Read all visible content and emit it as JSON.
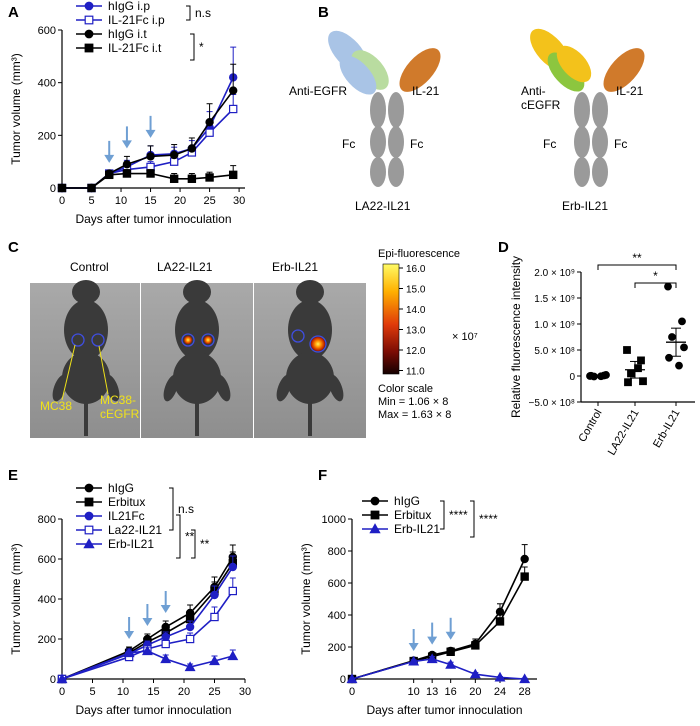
{
  "panels": {
    "A": "A",
    "B": "B",
    "C": "C",
    "D": "D",
    "E": "E",
    "F": "F"
  },
  "colors": {
    "blue": "#1f1fc4",
    "black": "#000000",
    "arrow": "#6f9fd3",
    "ab_grey": "#9a9a9a",
    "light_blue": "#a9c4e6",
    "light_green": "#b9dca0",
    "orange": "#d07a2b",
    "yellow": "#f3c21b",
    "green": "#8cc63f"
  },
  "diagram": {
    "left": {
      "anti": "Anti-EGFR",
      "il21": "IL-21",
      "fc_left": "Fc",
      "fc_right": "Fc",
      "name": "LA22-IL21"
    },
    "right": {
      "anti_1": "Anti-",
      "anti_2": "cEGFR",
      "il21": "IL-21",
      "fc_left": "Fc",
      "fc_right": "Fc",
      "name": "Erb-IL21"
    }
  },
  "imaging": {
    "cols": [
      "Control",
      "LA22-IL21",
      "Erb-IL21"
    ],
    "label_mc38": "MC38",
    "label_mc38c_1": "MC38-",
    "label_mc38c_2": "cEGFR",
    "scale_title": "Epi-fluorescence",
    "scale_ticks": [
      "16.0",
      "15.0",
      "14.0",
      "13.0",
      "12.0",
      "11.0"
    ],
    "scale_exp": "× 10⁷",
    "scale_caption": "Color scale",
    "scale_min": "Min = 1.06 × 8",
    "scale_max": "Max = 1.63 × 8"
  },
  "chart_data": [
    {
      "panel": "A",
      "type": "line",
      "xlabel": "Days after tumor innoculation",
      "ylabel": "Tumor volume (mm³)",
      "xlim": [
        0,
        31
      ],
      "ylim": [
        0,
        600
      ],
      "xticks": [
        0,
        5,
        10,
        15,
        20,
        25,
        30
      ],
      "yticks": [
        0,
        200,
        400,
        600
      ],
      "arrows": [
        8,
        11,
        15
      ],
      "x": [
        0,
        5,
        8,
        11,
        15,
        19,
        22,
        25,
        29
      ],
      "series": [
        {
          "name": "hIgG  i.p",
          "color": "#1f1fc4",
          "marker": "circle",
          "filled": true,
          "values": [
            0,
            0,
            55,
            80,
            125,
            130,
            150,
            230,
            420
          ],
          "err": [
            0,
            0,
            10,
            25,
            35,
            25,
            30,
            60,
            115
          ]
        },
        {
          "name": "IL-21Fc  i.p",
          "color": "#1f1fc4",
          "marker": "square",
          "filled": false,
          "values": [
            0,
            0,
            55,
            70,
            80,
            100,
            135,
            210,
            300
          ],
          "err": [
            0,
            0,
            10,
            15,
            20,
            20,
            25,
            40,
            55
          ]
        },
        {
          "name": "hIgG  i.t",
          "color": "#000000",
          "marker": "circle",
          "filled": true,
          "values": [
            0,
            0,
            55,
            90,
            120,
            125,
            150,
            250,
            370
          ],
          "err": [
            0,
            0,
            10,
            30,
            40,
            40,
            40,
            70,
            100
          ]
        },
        {
          "name": "IL-21Fc  i.t",
          "color": "#000000",
          "marker": "square",
          "filled": true,
          "values": [
            0,
            0,
            50,
            55,
            55,
            35,
            35,
            40,
            50
          ],
          "err": [
            0,
            0,
            10,
            15,
            15,
            20,
            20,
            20,
            35
          ]
        }
      ],
      "sig": [
        "n.s",
        "*"
      ]
    },
    {
      "panel": "D",
      "type": "scatter",
      "xlabel": "",
      "ylabel": "Relative fluorescence intensity",
      "ylim": [
        -500000000,
        2000000000
      ],
      "categories": [
        "Control",
        "LA22-IL21",
        "Erb-IL21"
      ],
      "ytick_labels": [
        "2.0 × 10⁹",
        "1.5 × 10⁹",
        "1.0 × 10⁹",
        "5.0 × 10⁸",
        "0",
        "−5.0 × 10⁸"
      ],
      "yticks": [
        2000000000,
        1500000000,
        1000000000,
        500000000,
        0,
        -500000000
      ],
      "groups": [
        {
          "marker": "circle",
          "points": [
            0,
            10000000,
            -10000000,
            20000000,
            5000000,
            -5000000
          ],
          "mean": 0,
          "err": 20000000
        },
        {
          "marker": "square",
          "points": [
            500000000,
            300000000,
            50000000,
            -100000000,
            -120000000,
            150000000
          ],
          "mean": 120000000,
          "err": 160000000
        },
        {
          "marker": "circle",
          "points": [
            1720000000,
            1050000000,
            750000000,
            550000000,
            350000000,
            200000000
          ],
          "mean": 650000000,
          "err": 270000000
        }
      ],
      "sig": [
        "**",
        "*"
      ]
    },
    {
      "panel": "E",
      "type": "line",
      "xlabel": "Days after tumor innoculation",
      "ylabel": "Tumor volume (mm³)",
      "xlim": [
        0,
        30
      ],
      "ylim": [
        0,
        800
      ],
      "xticks": [
        0,
        5,
        10,
        15,
        20,
        25,
        30
      ],
      "yticks": [
        0,
        200,
        400,
        600,
        800
      ],
      "arrows": [
        11,
        14,
        17
      ],
      "x": [
        0,
        11,
        14,
        17,
        21,
        25,
        28
      ],
      "series": [
        {
          "name": "hIgG",
          "color": "#000000",
          "marker": "circle",
          "filled": true,
          "values": [
            0,
            140,
            200,
            260,
            330,
            460,
            610
          ],
          "err": [
            0,
            20,
            25,
            30,
            40,
            50,
            60
          ]
        },
        {
          "name": "Erbitux",
          "color": "#000000",
          "marker": "square",
          "filled": true,
          "values": [
            0,
            130,
            185,
            230,
            300,
            440,
            580
          ],
          "err": [
            0,
            20,
            25,
            30,
            35,
            45,
            55
          ]
        },
        {
          "name": "IL21Fc",
          "color": "#1f1fc4",
          "marker": "circle",
          "filled": true,
          "values": [
            0,
            125,
            170,
            210,
            260,
            420,
            560
          ],
          "err": [
            0,
            15,
            20,
            25,
            30,
            45,
            55
          ]
        },
        {
          "name": "La22-IL21",
          "color": "#1f1fc4",
          "marker": "square",
          "filled": false,
          "values": [
            0,
            110,
            150,
            175,
            200,
            310,
            440
          ],
          "err": [
            0,
            15,
            20,
            25,
            30,
            50,
            65
          ]
        },
        {
          "name": "Erb-IL21",
          "color": "#1f1fc4",
          "marker": "triangle",
          "filled": true,
          "values": [
            0,
            130,
            140,
            100,
            60,
            90,
            115
          ],
          "err": [
            0,
            20,
            20,
            20,
            15,
            25,
            30
          ]
        }
      ],
      "sig": [
        "n.s",
        "**",
        "**"
      ]
    },
    {
      "panel": "F",
      "type": "line",
      "xlabel": "Days after tumor innoculation",
      "ylabel": "Tumor volume (mm³)",
      "xlim": [
        0,
        30
      ],
      "ylim": [
        0,
        1000
      ],
      "xticks": [
        0,
        10,
        13,
        16,
        20,
        24,
        28
      ],
      "yticks": [
        0,
        200,
        400,
        600,
        800,
        1000
      ],
      "arrows": [
        10,
        13,
        16
      ],
      "x": [
        0,
        10,
        13,
        16,
        20,
        24,
        28
      ],
      "series": [
        {
          "name": "hIgG",
          "color": "#000000",
          "marker": "circle",
          "filled": true,
          "values": [
            0,
            115,
            150,
            175,
            220,
            420,
            750
          ],
          "err": [
            0,
            10,
            15,
            20,
            30,
            50,
            90
          ]
        },
        {
          "name": "Erbitux",
          "color": "#000000",
          "marker": "square",
          "filled": true,
          "values": [
            0,
            112,
            140,
            170,
            210,
            360,
            640
          ],
          "err": [
            0,
            10,
            15,
            20,
            25,
            40,
            60
          ]
        },
        {
          "name": "Erb-IL21",
          "color": "#1f1fc4",
          "marker": "triangle",
          "filled": true,
          "values": [
            0,
            110,
            125,
            90,
            30,
            10,
            0
          ],
          "err": [
            0,
            10,
            15,
            15,
            10,
            5,
            5
          ]
        }
      ],
      "sig": [
        "****",
        "****"
      ]
    }
  ]
}
